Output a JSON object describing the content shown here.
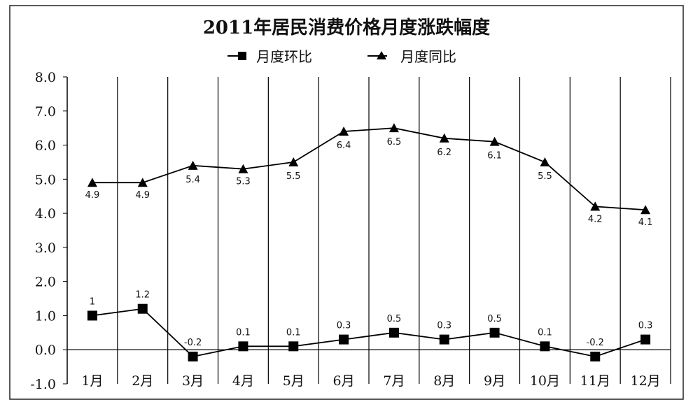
{
  "chart_data": {
    "type": "line",
    "title": "2011年居民消费价格月度涨跌幅度",
    "xlabel": "",
    "ylabel": "",
    "categories": [
      "1月",
      "2月",
      "3月",
      "4月",
      "5月",
      "6月",
      "7月",
      "8月",
      "9月",
      "10月",
      "11月",
      "12月"
    ],
    "ylim": [
      -1.0,
      8.0
    ],
    "yticks": [
      "8.0",
      "7.0",
      "6.0",
      "5.0",
      "4.0",
      "3.0",
      "2.0",
      "1.0",
      "0.0",
      "-1.0"
    ],
    "grid": "vertical",
    "legend_position": "top-center",
    "series": [
      {
        "name": "月度环比",
        "marker": "square",
        "values": [
          1.0,
          1.2,
          -0.2,
          0.1,
          0.1,
          0.3,
          0.5,
          0.3,
          0.5,
          0.1,
          -0.2,
          0.3
        ],
        "labels": [
          "1",
          "1.2",
          "-0.2",
          "0.1",
          "0.1",
          "0.3",
          "0.5",
          "0.3",
          "0.5",
          "0.1",
          "-0.2",
          "0.3"
        ]
      },
      {
        "name": "月度同比",
        "marker": "triangle",
        "values": [
          4.9,
          4.9,
          5.4,
          5.3,
          5.5,
          6.4,
          6.5,
          6.2,
          6.1,
          5.5,
          4.2,
          4.1
        ],
        "labels": [
          "4.9",
          "4.9",
          "5.4",
          "5.3",
          "5.5",
          "6.4",
          "6.5",
          "6.2",
          "6.1",
          "5.5",
          "4.2",
          "4.1"
        ]
      }
    ]
  }
}
